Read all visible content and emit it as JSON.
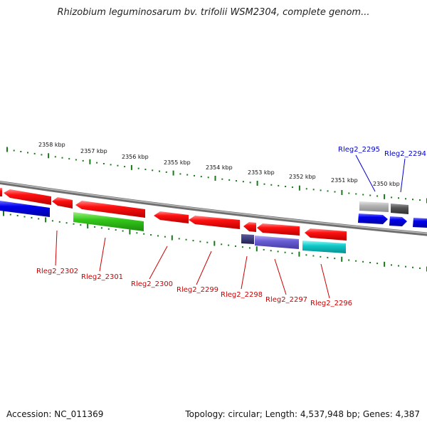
{
  "title": "Rhizobium leguminosarum bv. trifolii WSM2304, complete genom...",
  "footer": {
    "accession": "Accession: NC_011369",
    "summary": "Topology: circular; Length: 4,537,948 bp; Genes: 4,387"
  },
  "colors": {
    "backbone": "#888888",
    "tick": "#1a7a1a",
    "label_red": "#cc0000",
    "label_blue": "#0000cc"
  },
  "scale": [
    {
      "label": "2358 kbp"
    },
    {
      "label": "2357 kbp"
    },
    {
      "label": "2356 kbp"
    },
    {
      "label": "2355 kbp"
    },
    {
      "label": "2354 kbp"
    },
    {
      "label": "2353 kbp"
    },
    {
      "label": "2352 kbp"
    },
    {
      "label": "2351 kbp"
    },
    {
      "label": "2350 kbp"
    }
  ],
  "gene_labels": [
    {
      "name": "Rleg2_2295",
      "color": "#0000cc"
    },
    {
      "name": "Rleg2_2294",
      "color": "#0000cc"
    },
    {
      "name": "Rleg2_2302",
      "color": "#cc0000"
    },
    {
      "name": "Rleg2_2301",
      "color": "#cc0000"
    },
    {
      "name": "Rleg2_2300",
      "color": "#cc0000"
    },
    {
      "name": "Rleg2_2299",
      "color": "#cc0000"
    },
    {
      "name": "Rleg2_2298",
      "color": "#cc0000"
    },
    {
      "name": "Rleg2_2297",
      "color": "#cc0000"
    },
    {
      "name": "Rleg2_2296",
      "color": "#cc0000"
    }
  ]
}
